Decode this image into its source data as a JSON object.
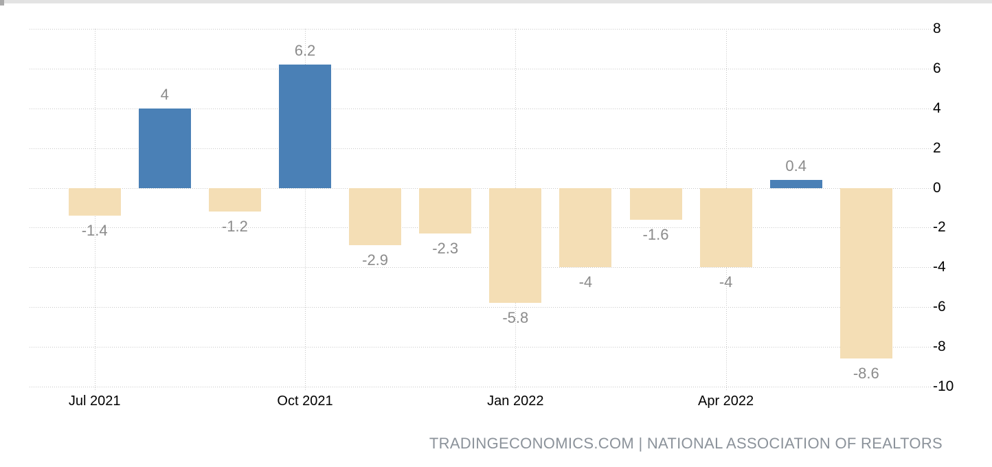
{
  "window": {
    "scrollbar": {
      "orientation": "horizontal",
      "position": "top"
    }
  },
  "chart_data": {
    "type": "bar",
    "title": "",
    "values": [
      -1.4,
      4,
      -1.2,
      6.2,
      -2.9,
      -2.3,
      -5.8,
      -4,
      -1.6,
      -4,
      0.4,
      -8.6
    ],
    "bar_labels": [
      "-1.4",
      "4",
      "-1.2",
      "6.2",
      "-2.9",
      "-2.3",
      "-5.8",
      "-4",
      "-1.6",
      "-4",
      "0.4",
      "-8.6"
    ],
    "x_ticks": [
      {
        "bar_index": 0,
        "label": "Jul 2021"
      },
      {
        "bar_index": 3,
        "label": "Oct 2021"
      },
      {
        "bar_index": 6,
        "label": "Jan 2022"
      },
      {
        "bar_index": 9,
        "label": "Apr 2022"
      }
    ],
    "y_ticks": [
      8,
      6,
      4,
      2,
      0,
      -2,
      -4,
      -6,
      -8,
      -10
    ],
    "ylim": [
      -10,
      8
    ],
    "y_axis_side": "right",
    "grid": "dotted",
    "legend": "none",
    "colors": {
      "positive_bar": "#4a80b6",
      "negative_bar": "#f4deb5",
      "gridline": "#c6c6c6",
      "bar_label_text": "#8b8b8b",
      "axis_text": "#000000"
    }
  },
  "footer": {
    "attribution": "TRADINGECONOMICS.COM | NATIONAL ASSOCIATION OF REALTORS",
    "color": "#8b929a"
  }
}
